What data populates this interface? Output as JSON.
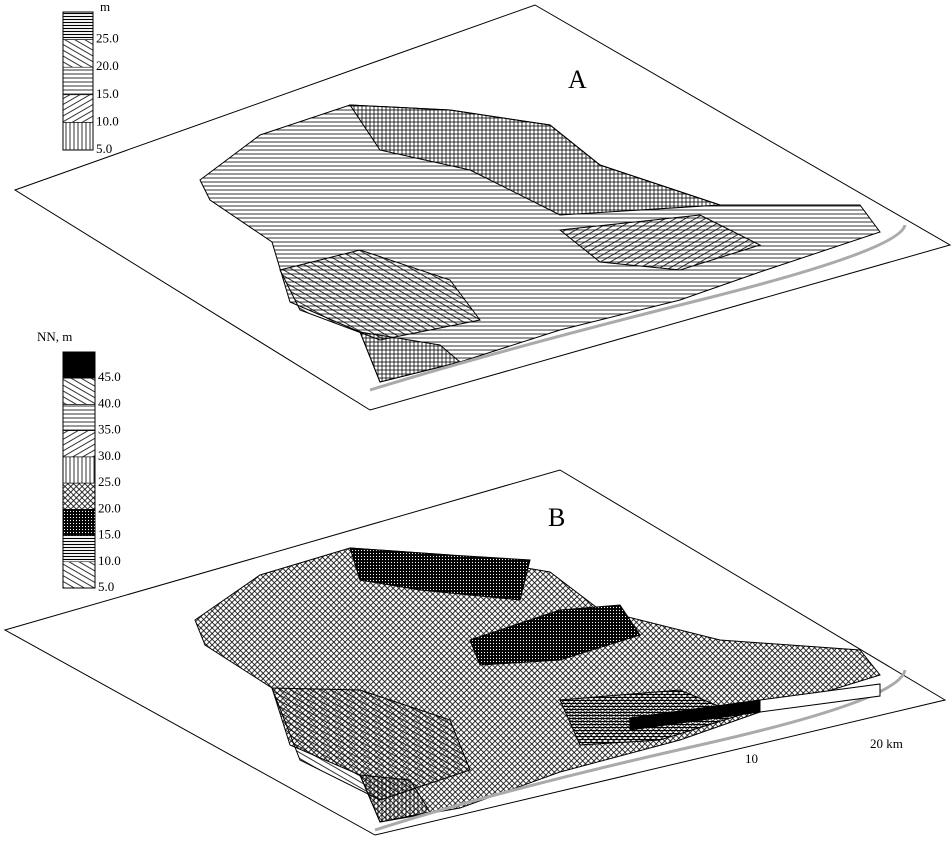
{
  "panel_a": {
    "label": "A",
    "legend": {
      "title": "m",
      "items": [
        "25.0",
        "20.0",
        "15.0",
        "10.0",
        "5.0"
      ]
    }
  },
  "panel_b": {
    "label": "B",
    "legend": {
      "title": "NN, m",
      "items": [
        "45.0",
        "40.0",
        "35.0",
        "30.0",
        "25.0",
        "20.0",
        "15.0",
        "10.0",
        "5.0"
      ]
    }
  },
  "scale_bar": {
    "mid_label": "10",
    "end_label": "20 km"
  }
}
